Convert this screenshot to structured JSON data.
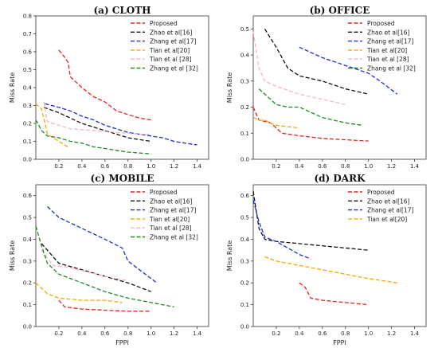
{
  "chart_data": [
    {
      "type": "line",
      "title": "(a)  CLOTH",
      "xlabel": "",
      "ylabel": "Miss Rate",
      "xlim": [
        0,
        1.5
      ],
      "ylim": [
        0,
        0.8
      ],
      "xticks": [
        "0.2",
        "0.4",
        "0.6",
        "0.8",
        "1.0",
        "1.2",
        "1.4"
      ],
      "yticks": [
        "0.0",
        "0.1",
        "0.2",
        "0.3",
        "0.4",
        "0.5",
        "0.6",
        "0.7",
        "0.8"
      ],
      "legend_position": "top-right",
      "series": [
        {
          "name": "Proposed",
          "color": "#e8201f",
          "x": [
            0.2,
            0.25,
            0.28,
            0.3,
            0.4,
            0.5,
            0.6,
            0.7,
            0.8,
            0.9,
            1.0
          ],
          "y": [
            0.61,
            0.57,
            0.54,
            0.46,
            0.4,
            0.35,
            0.32,
            0.27,
            0.25,
            0.23,
            0.22
          ]
        },
        {
          "name": "Zhao et al[16]",
          "color": "#111111",
          "x": [
            0.07,
            0.2,
            0.3,
            0.4,
            0.5,
            0.6,
            0.7,
            0.8,
            0.9,
            1.0
          ],
          "y": [
            0.29,
            0.26,
            0.23,
            0.2,
            0.18,
            0.16,
            0.14,
            0.12,
            0.11,
            0.1
          ]
        },
        {
          "name": "Zhang et al[17]",
          "color": "#1c2ecf",
          "x": [
            0.08,
            0.2,
            0.3,
            0.4,
            0.5,
            0.6,
            0.7,
            0.8,
            0.9,
            1.0,
            1.1,
            1.2,
            1.3,
            1.4
          ],
          "y": [
            0.31,
            0.29,
            0.27,
            0.24,
            0.22,
            0.19,
            0.17,
            0.15,
            0.14,
            0.13,
            0.12,
            0.1,
            0.09,
            0.08
          ]
        },
        {
          "name": "Tian et al[20]",
          "color": "#f5a800",
          "x": [
            0.0,
            0.05,
            0.08,
            0.1,
            0.15,
            0.2,
            0.25,
            0.28
          ],
          "y": [
            0.31,
            0.28,
            0.2,
            0.14,
            0.12,
            0.1,
            0.08,
            0.07
          ]
        },
        {
          "name": "Tian et al [28]",
          "color": "#f7b6c4",
          "x": [
            0.07,
            0.1,
            0.2,
            0.3,
            0.5,
            0.7,
            0.9,
            1.0
          ],
          "y": [
            0.32,
            0.21,
            0.19,
            0.17,
            0.16,
            0.15,
            0.14,
            0.14
          ]
        },
        {
          "name": "Zhang et al [32]",
          "color": "#1e8a22",
          "x": [
            0.0,
            0.05,
            0.1,
            0.2,
            0.3,
            0.4,
            0.5,
            0.6,
            0.7,
            0.8,
            0.9,
            1.0
          ],
          "y": [
            0.22,
            0.16,
            0.13,
            0.12,
            0.1,
            0.09,
            0.07,
            0.06,
            0.05,
            0.04,
            0.035,
            0.03
          ]
        }
      ]
    },
    {
      "type": "line",
      "title": "(b)  OFFICE",
      "xlabel": "",
      "ylabel": "Miss Rate",
      "xlim": [
        0,
        1.5
      ],
      "ylim": [
        0,
        0.55
      ],
      "xticks": [
        "0.2",
        "0.4",
        "0.6",
        "0.8",
        "1.0",
        "1.2",
        "1.4"
      ],
      "yticks": [
        "0.0",
        "0.1",
        "0.2",
        "0.3",
        "0.4",
        "0.5"
      ],
      "legend_position": "top-right",
      "series": [
        {
          "name": "Proposed",
          "color": "#e8201f",
          "x": [
            0.0,
            0.05,
            0.15,
            0.2,
            0.25,
            0.4,
            0.6,
            0.8,
            1.0
          ],
          "y": [
            0.2,
            0.15,
            0.14,
            0.12,
            0.1,
            0.09,
            0.08,
            0.075,
            0.07
          ]
        },
        {
          "name": "Zhao et al[16]",
          "color": "#111111",
          "x": [
            0.1,
            0.2,
            0.3,
            0.4,
            0.6,
            0.8,
            1.0
          ],
          "y": [
            0.5,
            0.43,
            0.35,
            0.32,
            0.3,
            0.27,
            0.25
          ]
        },
        {
          "name": "Zhang et al[17]",
          "color": "#1c2ecf",
          "x": [
            0.4,
            0.6,
            0.8,
            1.0,
            1.1,
            1.25
          ],
          "y": [
            0.43,
            0.39,
            0.36,
            0.33,
            0.3,
            0.25
          ]
        },
        {
          "name": "Tian et al[20]",
          "color": "#f5a800",
          "x": [
            0.0,
            0.05,
            0.1,
            0.2,
            0.3,
            0.4
          ],
          "y": [
            0.16,
            0.15,
            0.15,
            0.13,
            0.125,
            0.12
          ]
        },
        {
          "name": "Tian et al [28]",
          "color": "#f7b6c4",
          "x": [
            0.0,
            0.05,
            0.1,
            0.2,
            0.4,
            0.6,
            0.8
          ],
          "y": [
            0.49,
            0.35,
            0.3,
            0.28,
            0.25,
            0.23,
            0.21
          ]
        },
        {
          "name": "Zhang et al [32]",
          "color": "#1e8a22",
          "x": [
            0.05,
            0.2,
            0.3,
            0.4,
            0.6,
            0.8,
            0.95
          ],
          "y": [
            0.27,
            0.21,
            0.2,
            0.2,
            0.16,
            0.14,
            0.13
          ]
        }
      ]
    },
    {
      "type": "line",
      "title": "(c)  MOBILE",
      "xlabel": "FPPI",
      "ylabel": "Miss Rate",
      "xlim": [
        0,
        1.5
      ],
      "ylim": [
        0,
        0.65
      ],
      "xticks": [
        "0.2",
        "0.4",
        "0.6",
        "0.8",
        "1.0",
        "1.2",
        "1.4"
      ],
      "yticks": [
        "0.0",
        "0.1",
        "0.2",
        "0.3",
        "0.4",
        "0.5",
        "0.6"
      ],
      "legend_position": "top-right",
      "series": [
        {
          "name": "Proposed",
          "color": "#e8201f",
          "x": [
            0.2,
            0.25,
            0.4,
            0.6,
            0.8,
            1.0
          ],
          "y": [
            0.12,
            0.09,
            0.08,
            0.075,
            0.07,
            0.07
          ]
        },
        {
          "name": "Zhao et al[16]",
          "color": "#111111",
          "x": [
            0.05,
            0.1,
            0.2,
            0.4,
            0.6,
            0.8,
            1.0
          ],
          "y": [
            0.38,
            0.35,
            0.29,
            0.26,
            0.23,
            0.2,
            0.16
          ]
        },
        {
          "name": "Zhang et al[17]",
          "color": "#1c2ecf",
          "x": [
            0.1,
            0.2,
            0.4,
            0.6,
            0.75,
            0.8,
            0.9,
            1.05
          ],
          "y": [
            0.55,
            0.5,
            0.45,
            0.4,
            0.36,
            0.3,
            0.26,
            0.2
          ]
        },
        {
          "name": "Tian et al[20]",
          "color": "#f5a800",
          "x": [
            0.0,
            0.1,
            0.2,
            0.4,
            0.6,
            0.75
          ],
          "y": [
            0.2,
            0.15,
            0.13,
            0.12,
            0.12,
            0.11
          ]
        },
        {
          "name": "Tian et al [28]",
          "color": "#f7b6c4",
          "x": [
            0.05,
            0.15,
            0.3,
            0.6,
            0.8
          ],
          "y": [
            0.35,
            0.28,
            0.27,
            0.23,
            0.21
          ]
        },
        {
          "name": "Zhang et al [32]",
          "color": "#1e8a22",
          "x": [
            0.0,
            0.05,
            0.1,
            0.2,
            0.4,
            0.6,
            0.8,
            1.0,
            1.2
          ],
          "y": [
            0.46,
            0.37,
            0.29,
            0.24,
            0.2,
            0.16,
            0.13,
            0.11,
            0.09
          ]
        }
      ]
    },
    {
      "type": "line",
      "title": "(d)  DARK",
      "xlabel": "FPPI",
      "ylabel": "Miss Rate",
      "xlim": [
        0,
        1.5
      ],
      "ylim": [
        0,
        0.65
      ],
      "xticks": [
        "0.2",
        "0.4",
        "0.6",
        "0.8",
        "1.0",
        "1.2",
        "1.4"
      ],
      "yticks": [
        "0.0",
        "0.1",
        "0.2",
        "0.3",
        "0.4",
        "0.5",
        "0.6"
      ],
      "legend_position": "top-right",
      "series": [
        {
          "name": "Proposed",
          "color": "#e8201f",
          "x": [
            0.4,
            0.45,
            0.5,
            0.6,
            0.8,
            1.0
          ],
          "y": [
            0.2,
            0.18,
            0.13,
            0.12,
            0.11,
            0.1
          ]
        },
        {
          "name": "Zhao et al[16]",
          "color": "#111111",
          "x": [
            0.0,
            0.02,
            0.05,
            0.1,
            0.2,
            0.4,
            0.6,
            0.8,
            1.0
          ],
          "y": [
            0.62,
            0.55,
            0.45,
            0.4,
            0.39,
            0.38,
            0.37,
            0.36,
            0.35
          ]
        },
        {
          "name": "Zhang et al[17]",
          "color": "#1c2ecf",
          "x": [
            0.0,
            0.05,
            0.1,
            0.2,
            0.3,
            0.4,
            0.5
          ],
          "y": [
            0.58,
            0.48,
            0.41,
            0.39,
            0.36,
            0.33,
            0.31
          ]
        },
        {
          "name": "Tian et al[20]",
          "color": "#f5a800",
          "x": [
            0.1,
            0.2,
            0.4,
            0.6,
            0.8,
            1.0,
            1.25
          ],
          "y": [
            0.32,
            0.3,
            0.28,
            0.26,
            0.24,
            0.22,
            0.2
          ]
        }
      ]
    }
  ]
}
